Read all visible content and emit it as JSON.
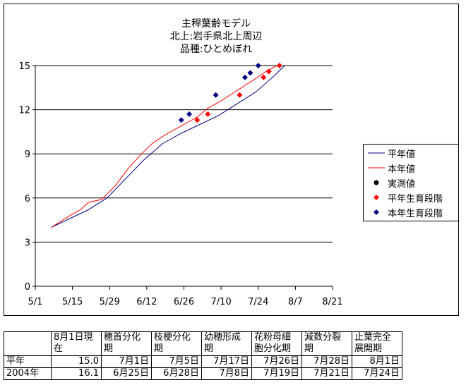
{
  "chart_data": {
    "type": "line",
    "title": [
      "主稈葉齢モデル",
      "北上:岩手県北上周辺",
      "品種:ひとめぼれ"
    ],
    "xlabel": "",
    "ylabel": "",
    "x_ticks": [
      "5/1",
      "5/15",
      "5/29",
      "6/12",
      "6/26",
      "7/10",
      "7/24",
      "8/7",
      "8/21"
    ],
    "x_range": [
      "5/1",
      "8/21"
    ],
    "y_ticks": [
      "0",
      "3",
      "6",
      "9",
      "12",
      "15"
    ],
    "ylim": [
      0,
      15
    ],
    "grid": "horizontal",
    "legend_position": "right",
    "series": [
      {
        "name": "平年値",
        "kind": "line",
        "color": "#000080",
        "points": [
          [
            "5/7",
            4.0
          ],
          [
            "5/14",
            4.6
          ],
          [
            "5/21",
            5.2
          ],
          [
            "5/28",
            6.0
          ],
          [
            "6/4",
            7.3
          ],
          [
            "6/11",
            8.6
          ],
          [
            "6/18",
            9.7
          ],
          [
            "6/25",
            10.4
          ],
          [
            "7/2",
            11.0
          ],
          [
            "7/9",
            11.6
          ],
          [
            "7/16",
            12.4
          ],
          [
            "7/23",
            13.2
          ],
          [
            "7/30",
            14.3
          ],
          [
            "8/3",
            15.0
          ]
        ]
      },
      {
        "name": "本年値",
        "kind": "line",
        "color": "#ff0000",
        "points": [
          [
            "5/7",
            4.0
          ],
          [
            "5/14",
            4.8
          ],
          [
            "5/18",
            5.2
          ],
          [
            "5/21",
            5.7
          ],
          [
            "5/26",
            5.9
          ],
          [
            "5/31",
            6.8
          ],
          [
            "6/5",
            8.0
          ],
          [
            "6/10",
            9.0
          ],
          [
            "6/14",
            9.7
          ],
          [
            "6/19",
            10.3
          ],
          [
            "6/25",
            10.9
          ],
          [
            "7/1",
            11.5
          ],
          [
            "7/5",
            12.1
          ],
          [
            "7/10",
            12.6
          ],
          [
            "7/16",
            13.3
          ],
          [
            "7/22",
            14.0
          ],
          [
            "7/27",
            14.6
          ],
          [
            "7/31",
            15.0
          ]
        ]
      },
      {
        "name": "実測値",
        "kind": "marker",
        "marker": "circle",
        "color": "#000000",
        "points": []
      },
      {
        "name": "平年生育段階",
        "kind": "marker",
        "marker": "diamond",
        "color": "#ff0000",
        "points": [
          [
            "7/1",
            11.3
          ],
          [
            "7/5",
            11.7
          ],
          [
            "7/17",
            13.0
          ],
          [
            "7/26",
            14.2
          ],
          [
            "7/28",
            14.6
          ],
          [
            "8/1",
            15.0
          ]
        ]
      },
      {
        "name": "本年生育段階",
        "kind": "marker",
        "marker": "diamond",
        "color": "#000080",
        "points": [
          [
            "6/25",
            11.3
          ],
          [
            "6/28",
            11.7
          ],
          [
            "7/8",
            13.0
          ],
          [
            "7/19",
            14.2
          ],
          [
            "7/21",
            14.5
          ],
          [
            "7/24",
            15.0
          ]
        ]
      }
    ]
  },
  "table": {
    "columns": [
      "",
      "8月1日現在",
      "穂首分化期",
      "枝梗分化期",
      "幼穂形成期",
      "花粉母細胞分化期",
      "減数分裂期",
      "止葉完全展開期"
    ],
    "header_lines": [
      [
        "",
        ""
      ],
      [
        "8月1日現",
        "在"
      ],
      [
        "穂首分化",
        "期"
      ],
      [
        "枝梗分化",
        "期"
      ],
      [
        "幼穂形成",
        "期"
      ],
      [
        "花粉母細",
        "胞分化期"
      ],
      [
        "減数分裂",
        "期"
      ],
      [
        "止葉完全",
        "展開期"
      ]
    ],
    "rows": [
      [
        "平年",
        "15.0",
        "7月1日",
        "7月5日",
        "7月17日",
        "7月26日",
        "7月28日",
        "8月1日"
      ],
      [
        "2004年",
        "16.1",
        "6月25日",
        "6月28日",
        "7月8日",
        "7月19日",
        "7月21日",
        "7月24日"
      ]
    ]
  }
}
